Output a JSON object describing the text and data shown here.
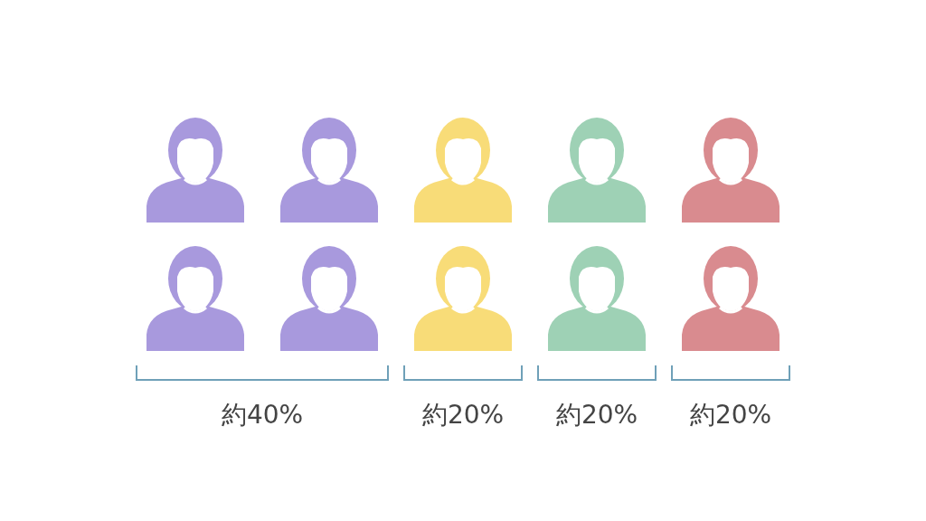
{
  "chart_data": {
    "type": "other",
    "categories": [
      null,
      null,
      null,
      null
    ],
    "values": [
      40,
      20,
      20,
      20
    ],
    "value_labels": [
      "約40%",
      "約20%",
      "約20%",
      "約20%"
    ],
    "colors": [
      "#a899dd",
      "#f8dc78",
      "#9ed1b5",
      "#d98b8f"
    ]
  }
}
